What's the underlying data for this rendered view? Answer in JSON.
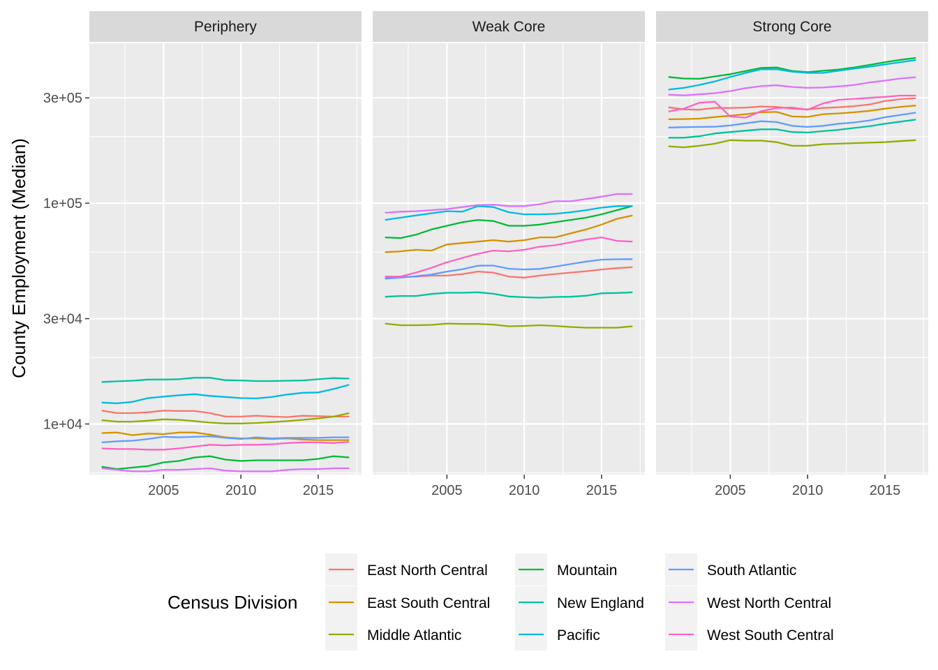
{
  "chart_data": {
    "type": "line",
    "ylabel": "County Employment (Median)",
    "y_scale": "log10",
    "ylim": [
      5900,
      530000
    ],
    "xlim": [
      2000.2,
      2017.8
    ],
    "x_ticks": [
      2005,
      2010,
      2015
    ],
    "x_tick_labels": [
      "2005",
      "2010",
      "2015"
    ],
    "y_ticks": [
      10000,
      30000,
      100000,
      300000
    ],
    "y_tick_labels": [
      "1e+04",
      "3e+04",
      "1e+05",
      "3e+05"
    ],
    "y_minor_ticks": [
      6000,
      20000,
      60000,
      200000
    ],
    "grid": true,
    "x": [
      2001,
      2002,
      2003,
      2004,
      2005,
      2006,
      2007,
      2008,
      2009,
      2010,
      2011,
      2012,
      2013,
      2014,
      2015,
      2016,
      2017
    ],
    "legend": {
      "title": "Census Division",
      "position": "bottom",
      "entries": [
        "East North Central",
        "East South Central",
        "Middle Atlantic",
        "Mountain",
        "New England",
        "Pacific",
        "South Atlantic",
        "West North Central",
        "West South Central"
      ]
    },
    "colors": {
      "East North Central": "#F8766D",
      "East South Central": "#D39200",
      "Middle Atlantic": "#93AA00",
      "Mountain": "#00BA38",
      "New England": "#00C19F",
      "Pacific": "#00B9E3",
      "South Atlantic": "#619CFF",
      "West North Central": "#DB72FB",
      "West South Central": "#FF61C3"
    },
    "panels": [
      {
        "title": "Periphery",
        "series": [
          {
            "name": "East North Central",
            "values": [
              11500,
              11200,
              11200,
              11300,
              11500,
              11450,
              11450,
              11200,
              10800,
              10800,
              10900,
              10800,
              10750,
              10900,
              10850,
              10800,
              10800
            ]
          },
          {
            "name": "East South Central",
            "values": [
              9100,
              9150,
              8900,
              9050,
              9000,
              9150,
              9150,
              8950,
              8700,
              8600,
              8600,
              8550,
              8600,
              8500,
              8450,
              8450,
              8450
            ]
          },
          {
            "name": "Middle Atlantic",
            "values": [
              10400,
              10250,
              10250,
              10350,
              10500,
              10450,
              10300,
              10150,
              10050,
              10050,
              10100,
              10200,
              10300,
              10450,
              10600,
              10800,
              11200
            ]
          },
          {
            "name": "Mountain",
            "values": [
              6400,
              6250,
              6350,
              6450,
              6700,
              6800,
              7050,
              7150,
              6900,
              6800,
              6850,
              6850,
              6850,
              6850,
              6950,
              7150,
              7050
            ]
          },
          {
            "name": "New England",
            "values": [
              15500,
              15600,
              15700,
              15900,
              15900,
              15950,
              16200,
              16200,
              15800,
              15750,
              15650,
              15650,
              15700,
              15750,
              15950,
              16150,
              16050
            ]
          },
          {
            "name": "Pacific",
            "values": [
              12500,
              12400,
              12600,
              13100,
              13300,
              13500,
              13650,
              13400,
              13250,
              13100,
              13050,
              13250,
              13600,
              13850,
              13900,
              14400,
              15050
            ]
          },
          {
            "name": "South Atlantic",
            "values": [
              8250,
              8350,
              8400,
              8550,
              8750,
              8700,
              8750,
              8800,
              8650,
              8550,
              8700,
              8600,
              8650,
              8650,
              8650,
              8700,
              8700
            ]
          },
          {
            "name": "West North Central",
            "values": [
              6300,
              6200,
              6100,
              6100,
              6200,
              6200,
              6250,
              6300,
              6150,
              6100,
              6100,
              6100,
              6200,
              6250,
              6250,
              6300,
              6300
            ]
          },
          {
            "name": "West South Central",
            "values": [
              7750,
              7700,
              7700,
              7650,
              7650,
              7750,
              7900,
              8050,
              8000,
              8050,
              8050,
              8100,
              8200,
              8250,
              8250,
              8200,
              8300
            ]
          }
        ]
      },
      {
        "title": "Weak Core",
        "series": [
          {
            "name": "East North Central",
            "values": [
              46000,
              46300,
              46500,
              47000,
              47000,
              47700,
              49000,
              48500,
              46500,
              46000,
              47000,
              47800,
              48500,
              49200,
              50100,
              50800,
              51300
            ]
          },
          {
            "name": "East South Central",
            "values": [
              60000,
              60500,
              61500,
              61000,
              65000,
              66000,
              67000,
              68000,
              67000,
              68000,
              70000,
              70000,
              73000,
              76000,
              80000,
              85000,
              88000
            ]
          },
          {
            "name": "Middle Atlantic",
            "values": [
              28500,
              28000,
              28000,
              28100,
              28500,
              28400,
              28400,
              28200,
              27700,
              27800,
              28000,
              27800,
              27500,
              27300,
              27300,
              27300,
              27700
            ]
          },
          {
            "name": "Mountain",
            "values": [
              70000,
              69500,
              72000,
              76000,
              79000,
              82000,
              84000,
              83000,
              79000,
              79000,
              80000,
              82000,
              84000,
              86000,
              89000,
              93000,
              97000
            ]
          },
          {
            "name": "New England",
            "values": [
              37700,
              38000,
              38000,
              38800,
              39300,
              39300,
              39500,
              38900,
              37800,
              37500,
              37300,
              37600,
              37700,
              38100,
              39100,
              39200,
              39500
            ]
          },
          {
            "name": "Pacific",
            "values": [
              84000,
              86000,
              88000,
              90000,
              92000,
              91500,
              97000,
              96000,
              91000,
              89000,
              89000,
              89500,
              91000,
              93000,
              95500,
              97000,
              97000
            ]
          },
          {
            "name": "South Atlantic",
            "values": [
              45500,
              46000,
              46700,
              47500,
              49000,
              50200,
              52100,
              52200,
              50500,
              50100,
              50400,
              51600,
              53000,
              54400,
              55500,
              55700,
              55800
            ]
          },
          {
            "name": "West North Central",
            "values": [
              90500,
              91500,
              92000,
              93000,
              94000,
              96000,
              98000,
              98500,
              97000,
              97000,
              99000,
              102000,
              102000,
              104500,
              107000,
              110000,
              110000
            ]
          },
          {
            "name": "West South Central",
            "values": [
              46500,
              46500,
              48500,
              51000,
              54000,
              56500,
              59000,
              61000,
              60500,
              61500,
              63500,
              64500,
              66500,
              68500,
              70000,
              67500,
              67000
            ]
          }
        ]
      },
      {
        "title": "Strong Core",
        "series": [
          {
            "name": "East North Central",
            "values": [
              272000,
              266000,
              265000,
              270000,
              270000,
              271000,
              274000,
              273000,
              268000,
              266000,
              270000,
              272000,
              275000,
              280000,
              290000,
              296000,
              299000
            ]
          },
          {
            "name": "East South Central",
            "values": [
              240000,
              240500,
              241500,
              245500,
              249000,
              253000,
              258000,
              259000,
              247000,
              246000,
              253000,
              255000,
              258000,
              262000,
              268000,
              273000,
              277000
            ]
          },
          {
            "name": "Middle Atlantic",
            "values": [
              181000,
              179000,
              182000,
              186000,
              193000,
              192000,
              192000,
              189000,
              182000,
              182000,
              185000,
              186000,
              187000,
              188000,
              189000,
              191000,
              193000
            ]
          },
          {
            "name": "Mountain",
            "values": [
              373000,
              367000,
              366000,
              375000,
              384000,
              397000,
              410000,
              412000,
              397000,
              392000,
              398000,
              403000,
              412000,
              423000,
              435000,
              446000,
              455000
            ]
          },
          {
            "name": "New England",
            "values": [
              198000,
              198000,
              201000,
              207000,
              210000,
              213000,
              216000,
              216000,
              210000,
              209000,
              212000,
              215000,
              219000,
              223000,
              229000,
              234000,
              239000
            ]
          },
          {
            "name": "Pacific",
            "values": [
              327000,
              333000,
              343000,
              356000,
              373000,
              389000,
              404000,
              404000,
              394000,
              389000,
              389000,
              398000,
              407000,
              415000,
              425000,
              435000,
              445000
            ]
          },
          {
            "name": "South Atlantic",
            "values": [
              220000,
              221000,
              221500,
              222000,
              225000,
              230000,
              235000,
              233000,
              224000,
              221500,
              224000,
              229000,
              232000,
              237000,
              245000,
              251000,
              257000
            ]
          },
          {
            "name": "West North Central",
            "values": [
              310000,
              308000,
              311000,
              315000,
              322000,
              332000,
              339000,
              342000,
              336000,
              333000,
              334000,
              338000,
              343000,
              352000,
              359000,
              367000,
              372000
            ]
          },
          {
            "name": "West South Central",
            "values": [
              260000,
              268000,
              285000,
              288000,
              247000,
              244000,
              261000,
              270000,
              271000,
              265000,
              283000,
              294000,
              297000,
              300000,
              303000,
              307000,
              307000
            ]
          }
        ]
      }
    ]
  }
}
